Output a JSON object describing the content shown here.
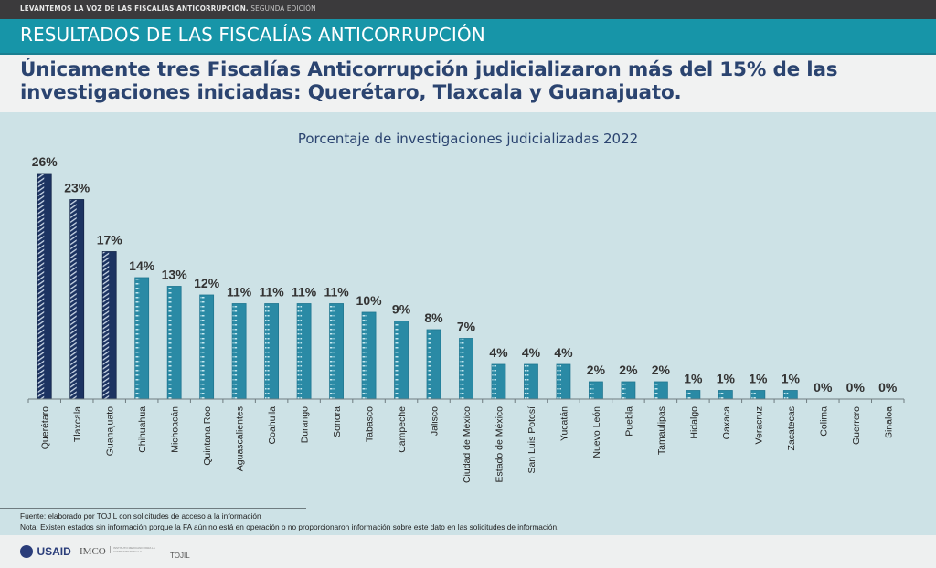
{
  "topbar": {
    "title": "LEVANTEMOS LA VOZ DE LAS FISCALÍAS ANTICORRUPCIÓN.",
    "edition": " SEGUNDA EDICIÓN"
  },
  "section_title": "RESULTADOS DE LAS FISCALÍAS ANTICORRUPCIÓN",
  "headline": {
    "line1": "Únicamente tres Fiscalías Anticorrupción judicializaron más del 15% de las",
    "line2": "investigaciones iniciadas: Querétaro, Tlaxcala y Guanajuato."
  },
  "colors": {
    "highlight": "#1c3361",
    "normal": "#2a8aa5",
    "title": "#2b4470",
    "band": "#1795a8"
  },
  "chart_data": {
    "type": "bar",
    "title": "Porcentaje de investigaciones judicializadas 2022",
    "xlabel": "",
    "ylabel": "",
    "ylim": [
      0,
      26
    ],
    "grid": false,
    "categories": [
      "Querétaro",
      "Tlaxcala",
      "Guanajuato",
      "Chihuahua",
      "Michoacán",
      "Quintana Roo",
      "Aguascalientes",
      "Coahuila",
      "Durango",
      "Sonora",
      "Tabasco",
      "Campeche",
      "Jalisco",
      "Ciudad de México",
      "Estado de México",
      "San Luis Potosí",
      "Yucatán",
      "Nuevo León",
      "Puebla",
      "Tamaulipas",
      "Hidalgo",
      "Oaxaca",
      "Veracruz",
      "Zacatecas",
      "Colima",
      "Guerrero",
      "Sinaloa"
    ],
    "values": [
      26,
      23,
      17,
      14,
      13,
      12,
      11,
      11,
      11,
      11,
      10,
      9,
      8,
      7,
      4,
      4,
      4,
      2,
      2,
      2,
      1,
      1,
      1,
      1,
      0,
      0,
      0
    ],
    "labels": [
      "26%",
      "23%",
      "17%",
      "14%",
      "13%",
      "12%",
      "11%",
      "11%",
      "11%",
      "11%",
      "10%",
      "9%",
      "8%",
      "7%",
      "4%",
      "4%",
      "4%",
      "2%",
      "2%",
      "2%",
      "1%",
      "1%",
      "1%",
      "1%",
      "0%",
      "0%",
      "0%"
    ],
    "highlighted": [
      "Querétaro",
      "Tlaxcala",
      "Guanajuato"
    ]
  },
  "notes": {
    "source": "Fuente: elaborado por TOJIL con solicitudes de acceso a la información",
    "note": "Nota: Existen estados sin información porque la FA aún no está en operación o no proporcionaron información sobre este dato en las solicitudes de información."
  },
  "logos": {
    "usaid": "USAID",
    "imco": "IMCO",
    "imco_sub": "INSTITUTO MEXICANO PARA LA COMPETITIVIDAD A.C.",
    "tojil": "TOJIL"
  }
}
